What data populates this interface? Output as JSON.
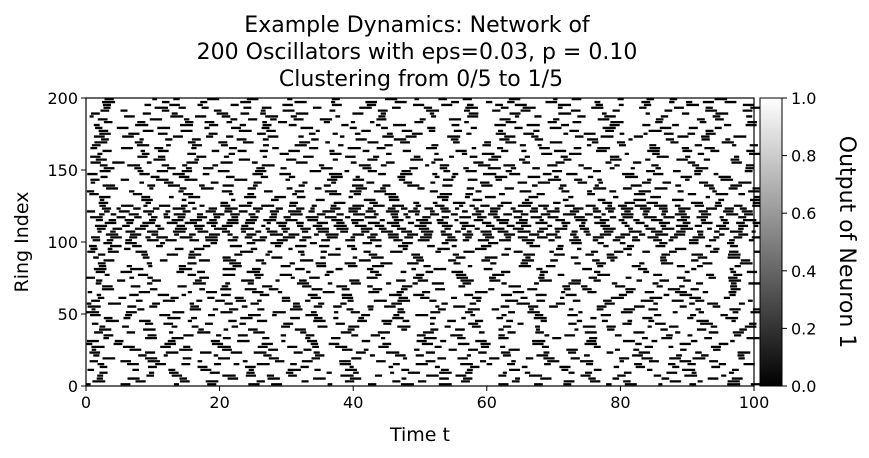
{
  "chart_data": {
    "type": "heatmap",
    "title_lines": [
      "Example Dynamics: Network of",
      "200 Oscillators with eps=0.03, p = 0.10",
      "Clustering from 0/5 to 1/5"
    ],
    "xlabel": "Time t",
    "ylabel": "Ring Index",
    "xlim": [
      0,
      100
    ],
    "ylim": [
      0,
      200
    ],
    "x_ticks": [
      "0",
      "20",
      "40",
      "60",
      "80",
      "100"
    ],
    "y_ticks": [
      "0",
      "50",
      "100",
      "150",
      "200"
    ],
    "colormap": "gray",
    "colorbar": {
      "label": "Output of Neuron 1",
      "range": [
        0.0,
        1.0
      ],
      "ticks": [
        "0.0",
        "0.2",
        "0.4",
        "0.6",
        "0.8",
        "1.0"
      ]
    },
    "value_levels": [
      0,
      1
    ],
    "description_of_values": "binary spike raster: black = 0, white = 1",
    "cluster_band_rows": [
      100,
      125
    ],
    "colors": {
      "high": "#ffffff",
      "low": "#000000",
      "axis": "#000000"
    }
  }
}
